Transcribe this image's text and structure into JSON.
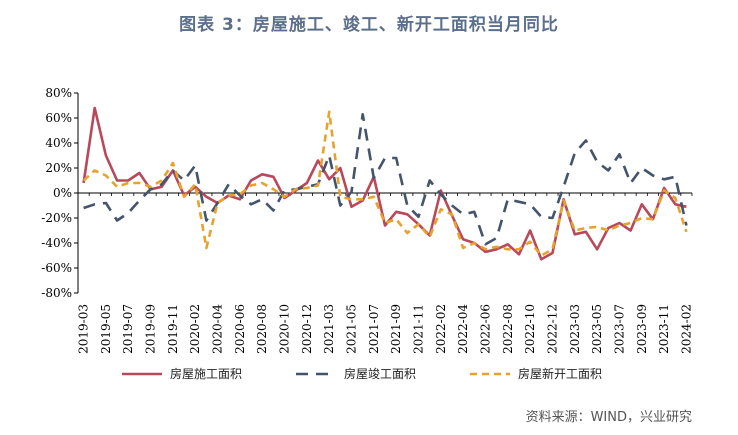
{
  "title": "图表 3：房屋施工、竣工、新开工面积当月同比",
  "source": "资料来源：WIND，兴业研究",
  "chart_data": {
    "type": "line",
    "ylim": [
      -80,
      80
    ],
    "y_ticks": [
      "80%",
      "60%",
      "40%",
      "20%",
      "0%",
      "-20%",
      "-40%",
      "-60%",
      "-80%"
    ],
    "y_tick_values": [
      80,
      60,
      40,
      20,
      0,
      -20,
      -40,
      -60,
      -80
    ],
    "x": [
      "2019-03",
      "2019-04",
      "2019-05",
      "2019-06",
      "2019-07",
      "2019-08",
      "2019-09",
      "2019-10",
      "2019-11",
      "2019-12",
      "2020-02",
      "2020-03",
      "2020-04",
      "2020-05",
      "2020-06",
      "2020-07",
      "2020-08",
      "2020-09",
      "2020-10",
      "2020-11",
      "2020-12",
      "2021-02",
      "2021-03",
      "2021-04",
      "2021-05",
      "2021-06",
      "2021-07",
      "2021-08",
      "2021-09",
      "2021-10",
      "2021-11",
      "2021-12",
      "2022-02",
      "2022-03",
      "2022-04",
      "2022-05",
      "2022-06",
      "2022-07",
      "2022-08",
      "2022-09",
      "2022-10",
      "2022-11",
      "2022-12",
      "2023-02",
      "2023-03",
      "2023-04",
      "2023-05",
      "2023-06",
      "2023-07",
      "2023-08",
      "2023-09",
      "2023-10",
      "2023-11",
      "2023-12",
      "2024-02"
    ],
    "x_labels": [
      "2019-03",
      "2019-05",
      "2019-07",
      "2019-09",
      "2019-11",
      "2020-02",
      "2020-04",
      "2020-06",
      "2020-08",
      "2020-10",
      "2020-12",
      "2021-03",
      "2021-05",
      "2021-07",
      "2021-09",
      "2021-11",
      "2022-02",
      "2022-04",
      "2022-06",
      "2022-08",
      "2022-10",
      "2022-12",
      "2023-03",
      "2023-05",
      "2023-07",
      "2023-09",
      "2023-11",
      "2024-02"
    ],
    "series": [
      {
        "name": "房屋施工面积",
        "color": "#b8485a",
        "dash": "solid",
        "values": [
          8,
          68,
          30,
          10,
          10,
          16,
          3,
          5,
          18,
          -2,
          5,
          -3,
          -8,
          -2,
          -5,
          10,
          15,
          13,
          -4,
          2,
          8,
          26,
          11,
          20,
          -11,
          -6,
          13,
          -26,
          -15,
          -17,
          -25,
          -34,
          2,
          -18,
          -37,
          -40,
          -47,
          -45,
          -41,
          -49,
          -30,
          -53,
          -48,
          -5,
          -33,
          -31,
          -45,
          -28,
          -24,
          -30,
          -9,
          -21,
          4,
          -9,
          -11
        ],
        "dash_array": ""
      },
      {
        "name": "房屋竣工面积",
        "color": "#44546a",
        "dash": "dashed",
        "values": [
          -12,
          -9,
          -8,
          -22,
          -16,
          -6,
          3,
          7,
          18,
          10,
          22,
          -22,
          -8,
          7,
          -2,
          -9,
          -5,
          -14,
          2,
          3,
          5,
          7,
          30,
          -10,
          1,
          63,
          12,
          28,
          28,
          -10,
          -19,
          10,
          -1,
          -10,
          -17,
          -15,
          -41,
          -36,
          -5,
          -7,
          -9,
          -19,
          -20,
          5,
          32,
          42,
          25,
          18,
          31,
          8,
          20,
          14,
          11,
          13,
          -26
        ],
        "dash_array": "12,8"
      },
      {
        "name": "房屋新开工面积",
        "color": "#e8a22c",
        "dash": "dashed",
        "values": [
          10,
          18,
          14,
          5,
          8,
          8,
          5,
          10,
          24,
          -3,
          7,
          -44,
          -8,
          -2,
          -1,
          6,
          8,
          3,
          -3,
          3,
          4,
          6,
          65,
          -3,
          -5,
          -5,
          -3,
          -24,
          -21,
          -32,
          -25,
          -35,
          -13,
          -17,
          -44,
          -40,
          -45,
          -43,
          -45,
          -45,
          -39,
          -50,
          -45,
          -6,
          -30,
          -28,
          -27,
          -30,
          -26,
          -24,
          -20,
          -21,
          2,
          -4,
          -31
        ],
        "dash_array": "7,5"
      }
    ]
  }
}
